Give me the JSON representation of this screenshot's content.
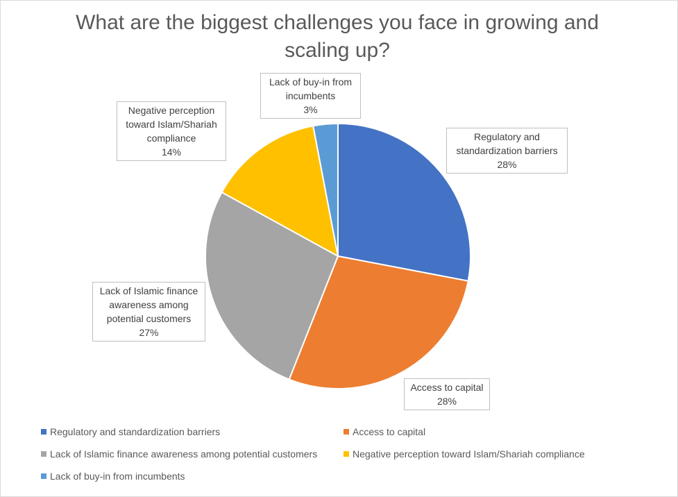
{
  "chart_data": {
    "type": "pie",
    "title": "What are the biggest challenges you face in growing and scaling up?",
    "start_angle_deg": 0,
    "slices": [
      {
        "name": "Regulatory and standardization barriers",
        "label_text": "Regulatory and\nstandardization barriers",
        "value": 28,
        "value_label": "28%",
        "color": "#4472c4"
      },
      {
        "name": "Access to capital",
        "label_text": "Access to capital",
        "value": 28,
        "value_label": "28%",
        "color": "#ed7d31"
      },
      {
        "name": "Lack of Islamic finance awareness among potential customers",
        "label_text": "Lack of Islamic finance\nawareness among\npotential customers",
        "value": 27,
        "value_label": "27%",
        "color": "#a5a5a5"
      },
      {
        "name": "Negative perception toward Islam/Shariah compliance",
        "label_text": "Negative perception\ntoward Islam/Shariah\ncompliance",
        "value": 14,
        "value_label": "14%",
        "color": "#ffc000"
      },
      {
        "name": "Lack of buy-in from incumbents",
        "label_text": "Lack of buy-in from\nincumbents",
        "value": 3,
        "value_label": "3%",
        "color": "#5b9bd5"
      }
    ],
    "legend_position": "bottom"
  }
}
